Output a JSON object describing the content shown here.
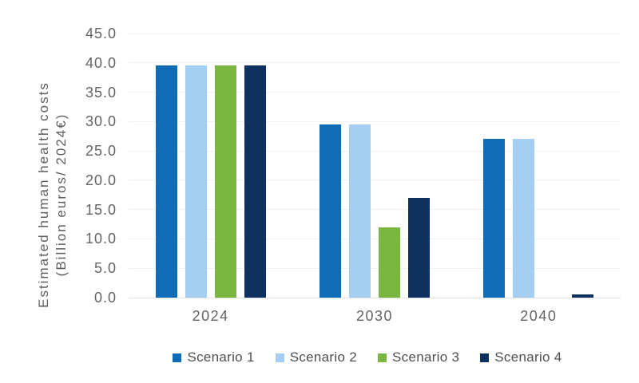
{
  "chart_data": {
    "type": "bar",
    "title": "",
    "categories": [
      "2024",
      "2030",
      "2040"
    ],
    "series": [
      {
        "name": "Scenario 1",
        "color": "#0F6DB7",
        "values": [
          39.5,
          29.5,
          27.0
        ]
      },
      {
        "name": "Scenario 2",
        "color": "#A5CEF3",
        "values": [
          39.5,
          29.5,
          27.0
        ]
      },
      {
        "name": "Scenario 3",
        "color": "#7BB542",
        "values": [
          39.5,
          12.0,
          0.0
        ]
      },
      {
        "name": "Scenario 4",
        "color": "#0F3160",
        "values": [
          39.5,
          17.0,
          0.5
        ]
      }
    ],
    "ylabel_line1": "Estimated human health costs",
    "ylabel_line2": "(Billion euros/ 2024€)",
    "xlabel": "",
    "ylim": [
      0,
      45
    ],
    "ytick_step": 5,
    "ytick_decimals": 1,
    "grid": true,
    "legend_position": "bottom"
  },
  "colors": {
    "background": "#FFFFFF",
    "gridline": "#F1F1F1",
    "baseline": "#E2E2E2",
    "axis_text": "#646464",
    "y_title_text": "#5E5E5E",
    "legend_text": "#4F4F4F"
  }
}
